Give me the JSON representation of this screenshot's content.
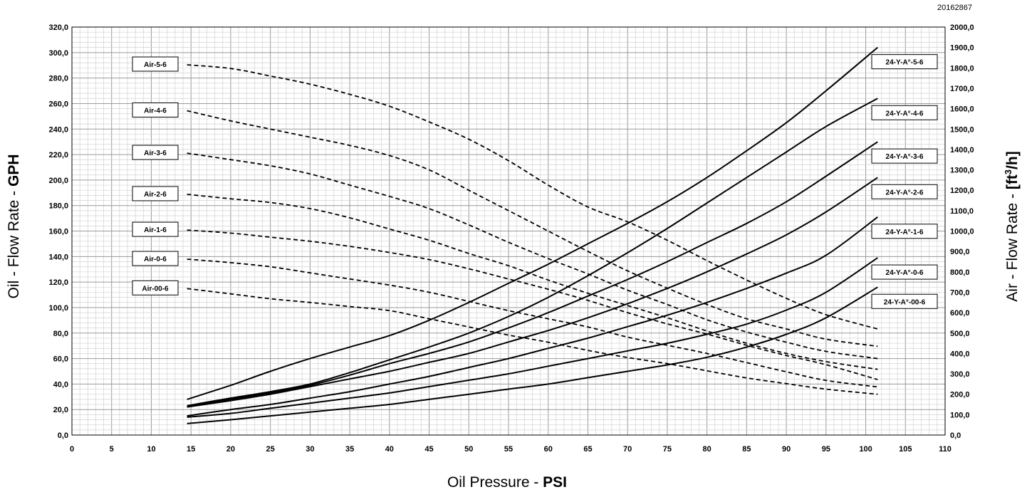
{
  "doc_id": "20162867",
  "chart_data": {
    "type": "line",
    "xlabel": "Oil Pressure - ",
    "xlabel_unit": "PSI",
    "ylabel_left": "Oil - Flow Rate - ",
    "ylabel_left_unit": "GPH",
    "ylabel_right": "Air - Flow Rate - ",
    "ylabel_right_unit_prefix": "[ft",
    "ylabel_right_unit_sup": "3",
    "ylabel_right_unit_suffix": "/h]",
    "xlim": [
      0,
      110
    ],
    "ylim_left": [
      0,
      320
    ],
    "ylim_right": [
      0,
      2000
    ],
    "x_ticks": [
      "0",
      "5",
      "10",
      "15",
      "20",
      "25",
      "30",
      "35",
      "40",
      "45",
      "50",
      "55",
      "60",
      "65",
      "70",
      "75",
      "80",
      "85",
      "90",
      "95",
      "100",
      "105",
      "110"
    ],
    "y_left_ticks": [
      "0,0",
      "20,0",
      "40,0",
      "60,0",
      "80,0",
      "100,0",
      "120,0",
      "140,0",
      "160,0",
      "180,0",
      "200,0",
      "220,0",
      "240,0",
      "260,0",
      "280,0",
      "300,0",
      "320,0"
    ],
    "y_right_ticks": [
      "0,0",
      "100,0",
      "200,0",
      "300,0",
      "400,0",
      "500,0",
      "600,0",
      "700,0",
      "800,0",
      "900,0",
      "1000,0",
      "1100,0",
      "1200,0",
      "1300,0",
      "1400,0",
      "1500,0",
      "1600,0",
      "1700,0",
      "1800,0",
      "1900,0",
      "2000,0"
    ],
    "grid": true,
    "oil_series": [
      {
        "name": "24-Y-A°-5-6",
        "x": [
          14.5,
          20,
          25,
          30,
          35,
          40,
          45,
          50,
          55,
          60,
          65,
          70,
          75,
          80,
          85,
          90,
          95,
          101.5
        ],
        "y": [
          28,
          39,
          50,
          60,
          69,
          78,
          90,
          104,
          119,
          134,
          150,
          166,
          183,
          202,
          223,
          245,
          270,
          304
        ]
      },
      {
        "name": "24-Y-A°-4-6",
        "x": [
          14.5,
          20,
          25,
          30,
          35,
          40,
          45,
          50,
          55,
          60,
          65,
          70,
          75,
          80,
          85,
          90,
          95,
          101.5
        ],
        "y": [
          23,
          29,
          34,
          40,
          49,
          59,
          69,
          80,
          93,
          108,
          125,
          143,
          162,
          182,
          202,
          222,
          242,
          264
        ]
      },
      {
        "name": "24-Y-A°-3-6",
        "x": [
          14.5,
          20,
          25,
          30,
          35,
          40,
          45,
          50,
          55,
          60,
          65,
          70,
          75,
          80,
          85,
          90,
          95,
          101.5
        ],
        "y": [
          22,
          28,
          33,
          39,
          47,
          56,
          64,
          73,
          84,
          96,
          109,
          122,
          136,
          151,
          166,
          183,
          203,
          230
        ]
      },
      {
        "name": "24-Y-A°-2-6",
        "x": [
          14.5,
          20,
          25,
          30,
          35,
          40,
          45,
          50,
          55,
          60,
          65,
          70,
          75,
          80,
          85,
          90,
          95,
          101.5
        ],
        "y": [
          22,
          27,
          32,
          38,
          44,
          50,
          57,
          64,
          73,
          82,
          92,
          103,
          115,
          128,
          142,
          157,
          175,
          202
        ]
      },
      {
        "name": "24-Y-A°-1-6",
        "x": [
          14.5,
          20,
          25,
          30,
          35,
          40,
          45,
          50,
          55,
          60,
          65,
          70,
          75,
          80,
          85,
          90,
          95,
          101.5
        ],
        "y": [
          15,
          20,
          24,
          29,
          34,
          40,
          46,
          53,
          60,
          68,
          76,
          85,
          94,
          104,
          115,
          127,
          141,
          171
        ]
      },
      {
        "name": "24-Y-A°-0-6",
        "x": [
          14.5,
          20,
          25,
          30,
          35,
          40,
          45,
          50,
          55,
          60,
          65,
          70,
          75,
          80,
          85,
          90,
          95,
          101.5
        ],
        "y": [
          14,
          17,
          21,
          25,
          29,
          33,
          38,
          43,
          48,
          54,
          60,
          66,
          72,
          79,
          87,
          98,
          112,
          139
        ]
      },
      {
        "name": "24-Y-A°-00-6",
        "x": [
          14.5,
          20,
          25,
          30,
          35,
          40,
          45,
          50,
          55,
          60,
          65,
          70,
          75,
          80,
          85,
          90,
          95,
          101.5
        ],
        "y": [
          9,
          12,
          15,
          18,
          21,
          24,
          28,
          32,
          36,
          40,
          45,
          50,
          55,
          61,
          69,
          79,
          92,
          116
        ]
      }
    ],
    "air_series": [
      {
        "name": "Air-5-6",
        "x": [
          14.5,
          20,
          25,
          30,
          35,
          40,
          45,
          50,
          55,
          60,
          65,
          70,
          75,
          80,
          85,
          90,
          95,
          101.5
        ],
        "y": [
          1815,
          1797,
          1760,
          1720,
          1670,
          1612,
          1535,
          1450,
          1345,
          1225,
          1118,
          1045,
          955,
          855,
          760,
          670,
          590,
          520
        ]
      },
      {
        "name": "Air-4-6",
        "x": [
          14.5,
          20,
          25,
          30,
          35,
          40,
          45,
          50,
          55,
          60,
          65,
          70,
          75,
          80,
          85,
          90,
          95,
          101.5
        ],
        "y": [
          1590,
          1540,
          1500,
          1460,
          1420,
          1370,
          1300,
          1200,
          1100,
          1000,
          900,
          805,
          720,
          640,
          570,
          520,
          470,
          435
        ]
      },
      {
        "name": "Air-3-6",
        "x": [
          14.5,
          20,
          25,
          30,
          35,
          40,
          45,
          50,
          55,
          60,
          65,
          70,
          75,
          80,
          85,
          90,
          95,
          101.5
        ],
        "y": [
          1382,
          1350,
          1320,
          1280,
          1225,
          1170,
          1110,
          1030,
          945,
          865,
          790,
          710,
          640,
          565,
          505,
          455,
          410,
          375
        ]
      },
      {
        "name": "Air-2-6",
        "x": [
          14.5,
          20,
          25,
          30,
          35,
          40,
          45,
          50,
          55,
          60,
          65,
          70,
          75,
          80,
          85,
          90,
          95,
          101.5
        ],
        "y": [
          1180,
          1158,
          1140,
          1110,
          1065,
          1010,
          955,
          890,
          830,
          760,
          695,
          635,
          575,
          510,
          450,
          400,
          360,
          322
        ]
      },
      {
        "name": "Air-1-6",
        "x": [
          14.5,
          20,
          25,
          30,
          35,
          40,
          45,
          50,
          55,
          60,
          65,
          70,
          75,
          80,
          85,
          90,
          95,
          101.5
        ],
        "y": [
          1005,
          990,
          970,
          950,
          925,
          895,
          860,
          815,
          765,
          715,
          660,
          600,
          545,
          495,
          440,
          390,
          345,
          272
        ]
      },
      {
        "name": "Air-0-6",
        "x": [
          14.5,
          20,
          25,
          30,
          35,
          40,
          45,
          50,
          55,
          60,
          65,
          70,
          75,
          80,
          85,
          90,
          95,
          101.5
        ],
        "y": [
          862,
          845,
          825,
          795,
          765,
          735,
          700,
          655,
          610,
          570,
          530,
          480,
          440,
          400,
          355,
          310,
          268,
          236
        ]
      },
      {
        "name": "Air-00-6",
        "x": [
          14.5,
          20,
          25,
          30,
          35,
          40,
          45,
          50,
          55,
          60,
          65,
          70,
          75,
          80,
          85,
          90,
          95,
          101.5
        ],
        "y": [
          718,
          692,
          668,
          650,
          630,
          610,
          570,
          530,
          490,
          455,
          415,
          380,
          350,
          315,
          280,
          252,
          225,
          200
        ]
      }
    ]
  }
}
